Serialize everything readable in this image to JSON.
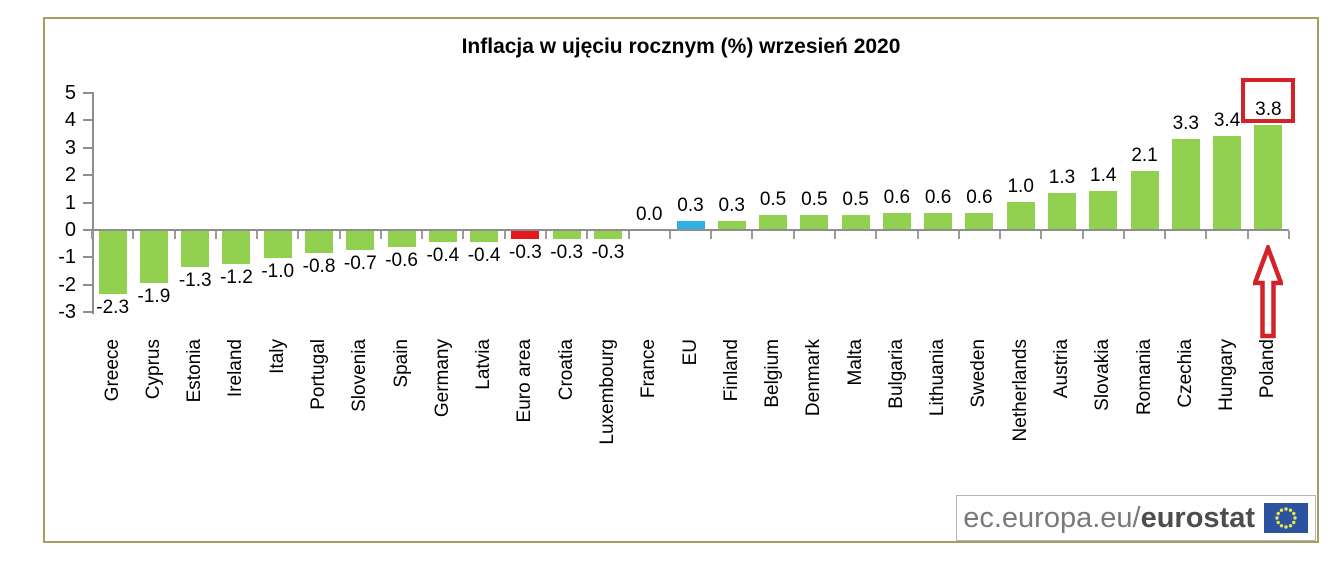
{
  "title": "Inflacja w ujęciu rocznym (%) wrzesień 2020",
  "chart_data": {
    "type": "bar",
    "title": "Inflacja w ujęciu rocznym (%) wrzesień 2020",
    "categories": [
      "Greece",
      "Cyprus",
      "Estonia",
      "Ireland",
      "Italy",
      "Portugal",
      "Slovenia",
      "Spain",
      "Germany",
      "Latvia",
      "Euro area",
      "Croatia",
      "Luxembourg",
      "France",
      "EU",
      "Finland",
      "Belgium",
      "Denmark",
      "Malta",
      "Bulgaria",
      "Lithuania",
      "Sweden",
      "Netherlands",
      "Austria",
      "Slovakia",
      "Romania",
      "Czechia",
      "Hungary",
      "Poland"
    ],
    "values": [
      -2.3,
      -1.9,
      -1.3,
      -1.2,
      -1.0,
      -0.8,
      -0.7,
      -0.6,
      -0.4,
      -0.4,
      -0.3,
      -0.3,
      -0.3,
      0.0,
      0.3,
      0.3,
      0.5,
      0.5,
      0.5,
      0.6,
      0.6,
      0.6,
      1.0,
      1.3,
      1.4,
      2.1,
      3.3,
      3.4,
      3.8
    ],
    "value_labels": [
      "-2.3",
      "-1.9",
      "-1.3",
      "-1.2",
      "-1.0",
      "-0.8",
      "-0.7",
      "-0.6",
      "-0.4",
      "-0.4",
      "-0.3",
      "-0.3",
      "-0.3",
      "0.0",
      "0.3",
      "0.3",
      "0.5",
      "0.5",
      "0.5",
      "0.6",
      "0.6",
      "0.6",
      "1.0",
      "1.3",
      "1.4",
      "2.1",
      "3.3",
      "3.4",
      "3.8"
    ],
    "yticks": [
      "5",
      "4",
      "3",
      "2",
      "1",
      "0",
      "-1",
      "-2",
      "-3"
    ],
    "ytick_values": [
      5,
      4,
      3,
      2,
      1,
      0,
      -1,
      -2,
      -3
    ],
    "ylim": [
      -3,
      5
    ],
    "grid": false,
    "legend": false,
    "colors": {
      "default_bar": "#92d050",
      "euro_area_bar": "#e31a1c",
      "eu_bar": "#2fb0e6",
      "highlight_red": "#d2222a",
      "axis_gray": "#8e8e8e"
    },
    "color_overrides": {
      "10": "#e31a1c",
      "14": "#2fb0e6"
    },
    "annotations": {
      "highlighted_category": "Poland",
      "highlighted_value_label": "3.8",
      "box": "red outline around Poland value label",
      "arrow": "red outlined up-arrow pointing at Poland bar"
    }
  },
  "footer": {
    "url_prefix": "ec.europa.eu/",
    "brand": "eurostat",
    "flag_icon": "eu-flag"
  }
}
